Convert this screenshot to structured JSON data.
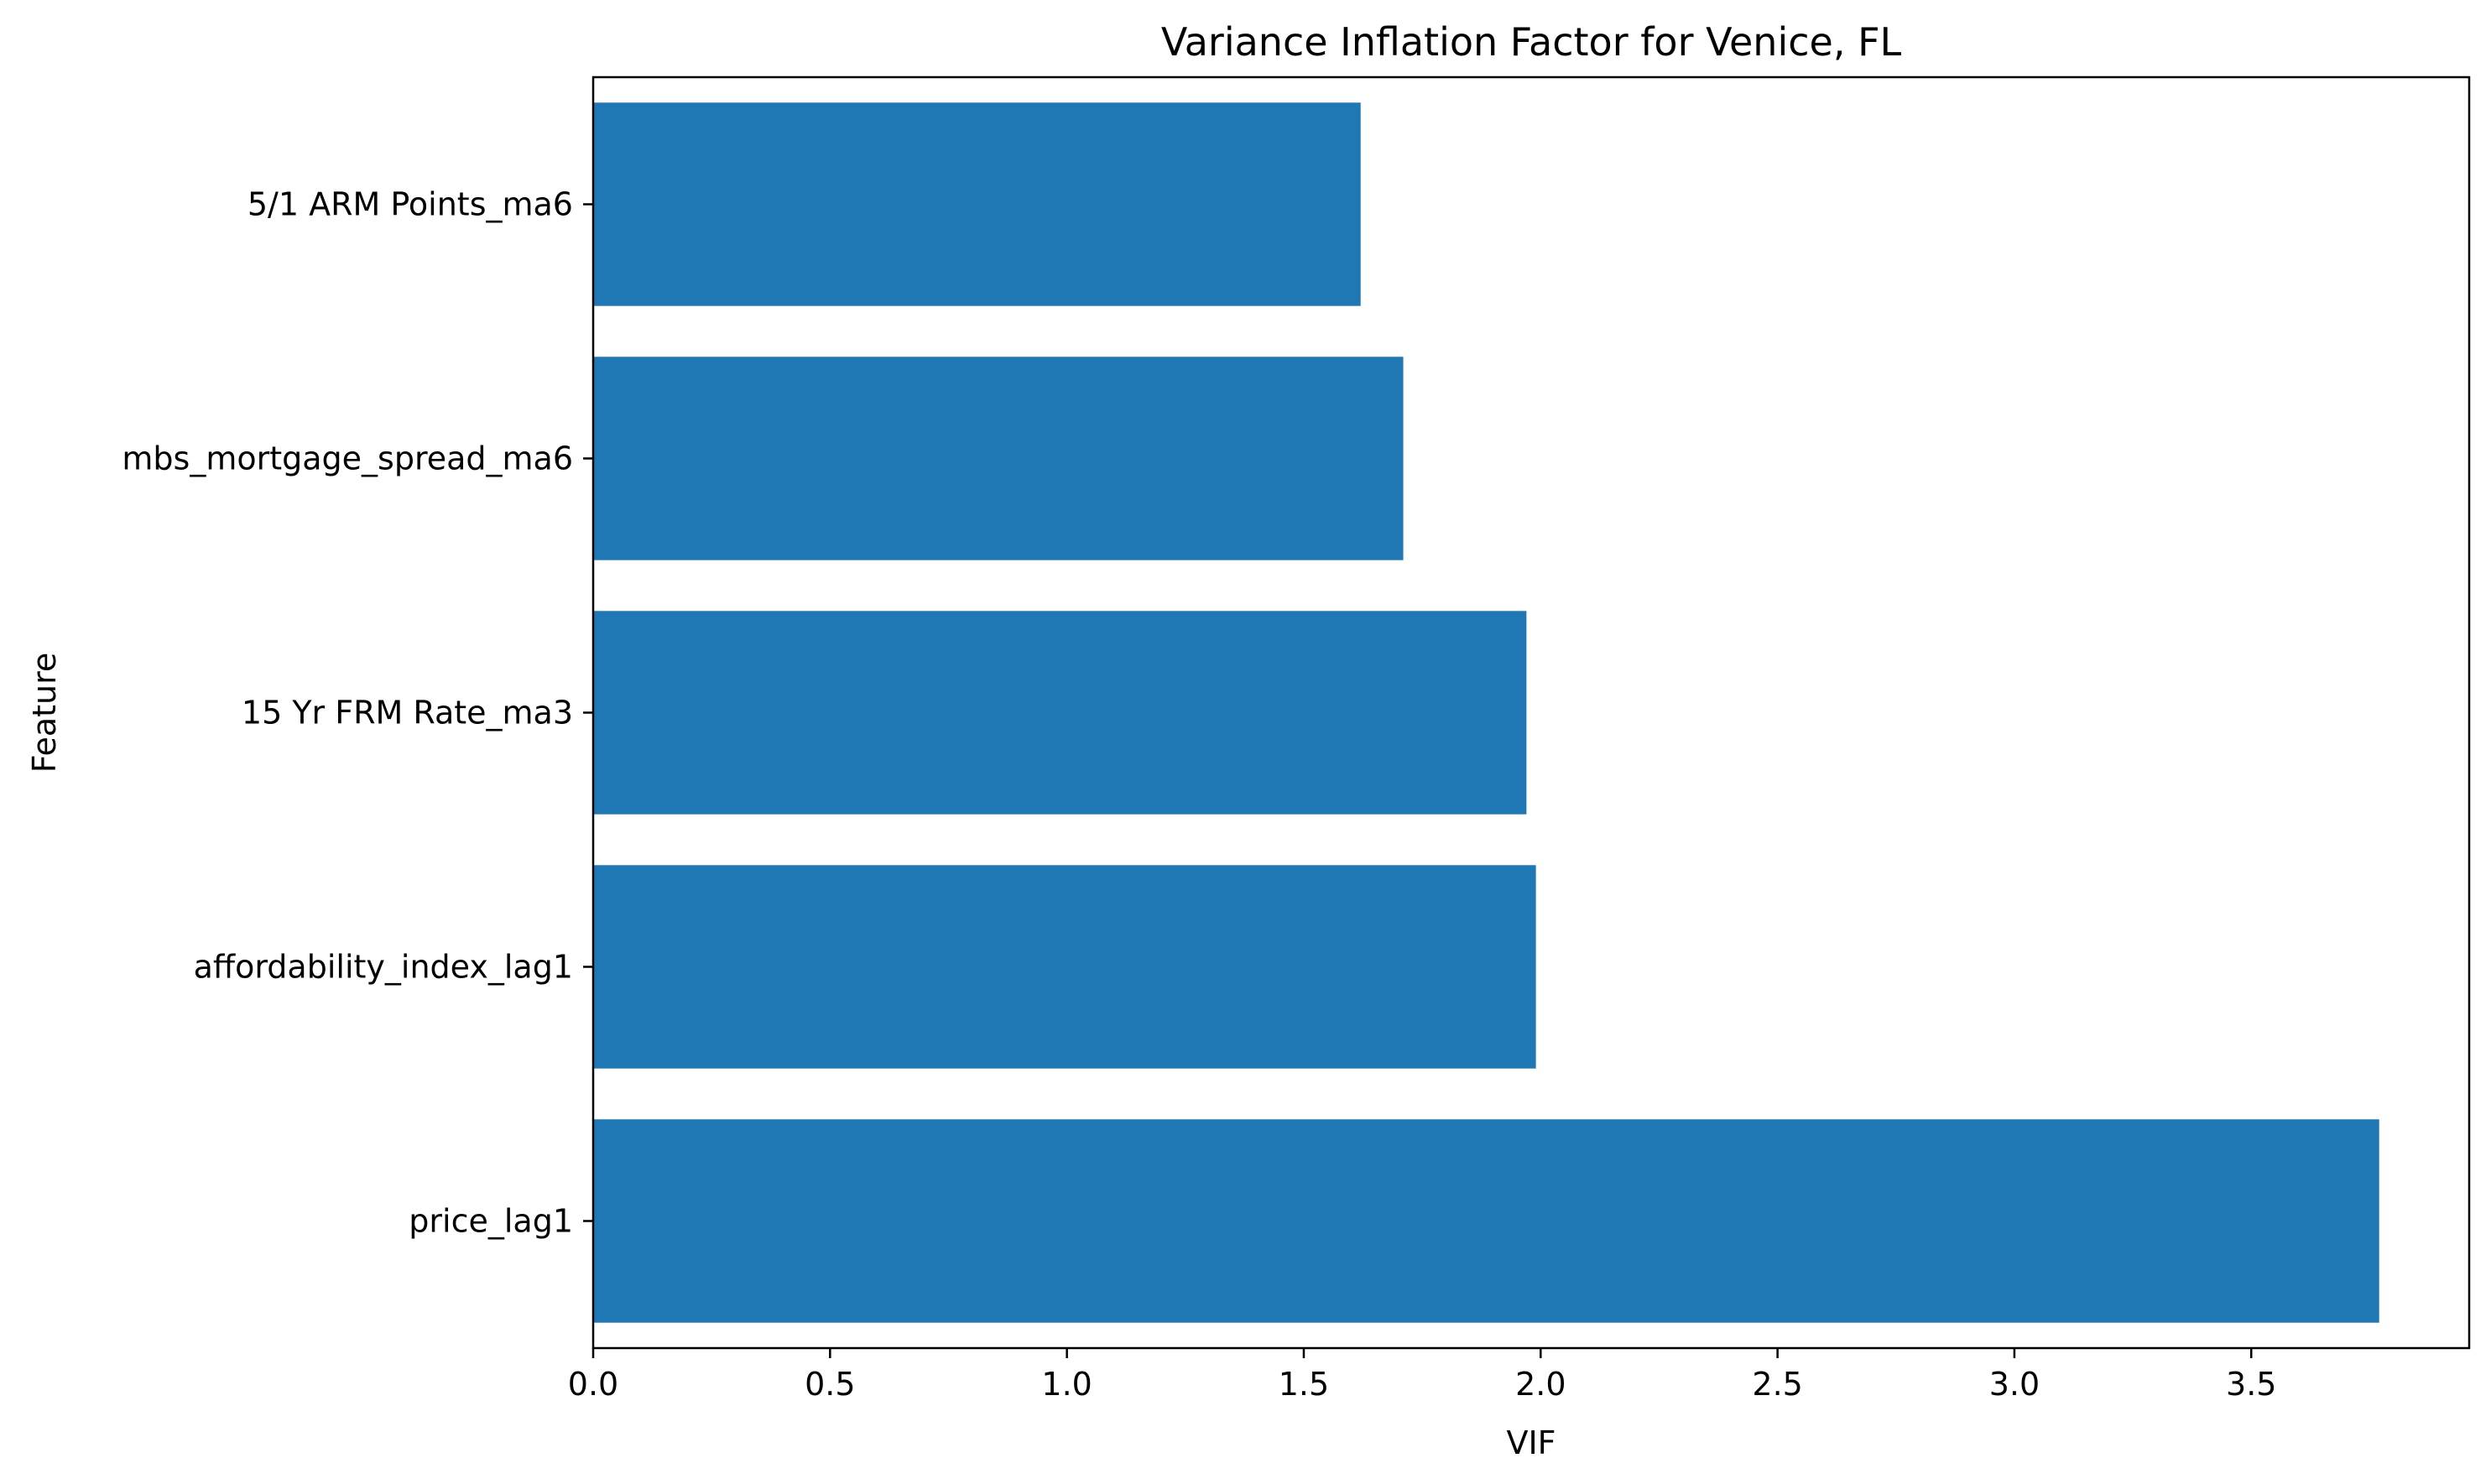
{
  "chart_data": {
    "type": "bar",
    "orientation": "horizontal",
    "title": "Variance Inflation Factor for Venice, FL",
    "xlabel": "VIF",
    "ylabel": "Feature",
    "categories": [
      "price_lag1",
      "affordability_index_lag1",
      "15 Yr FRM Rate_ma3",
      "mbs_mortgage_spread_ma6",
      "5/1 ARM Points_ma6"
    ],
    "values": [
      3.77,
      1.99,
      1.97,
      1.71,
      1.62
    ],
    "xlim": [
      0,
      3.96
    ],
    "xticks": [
      "0.0",
      "0.5",
      "1.0",
      "1.5",
      "2.0",
      "2.5",
      "3.0",
      "3.5"
    ],
    "bar_color": "#1f77b4",
    "grid": false,
    "legend": "none"
  }
}
